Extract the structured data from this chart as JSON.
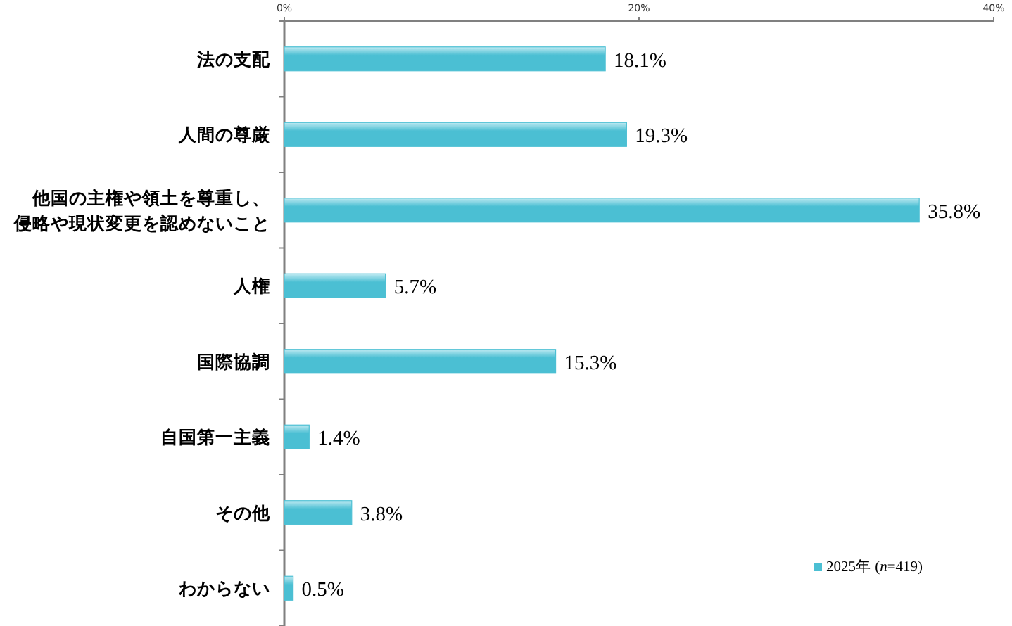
{
  "chart_data": {
    "type": "bar",
    "orientation": "horizontal",
    "categories": [
      "法の支配",
      "人間の尊厳",
      "他国の主権や領土を尊重し、侵略や現状変更を認めないこと",
      "人権",
      "国際協調",
      "自国第一主義",
      "その他",
      "わからない"
    ],
    "series": [
      {
        "name": "2025年 (*n*=419)",
        "color": "#4bbfd3",
        "values": [
          18.1,
          19.3,
          35.8,
          5.7,
          15.3,
          1.4,
          3.8,
          0.5
        ],
        "value_labels": [
          "18.1%",
          "19.3%",
          "35.8%",
          "5.7%",
          "15.3%",
          "1.4%",
          "3.8%",
          "0.5%"
        ]
      }
    ],
    "xlim": [
      0,
      40
    ],
    "xticks": [
      {
        "value": 0,
        "label": "0%"
      },
      {
        "value": 20,
        "label": "20%"
      },
      {
        "value": 40,
        "label": "40%"
      }
    ],
    "legend": "bottom right"
  }
}
